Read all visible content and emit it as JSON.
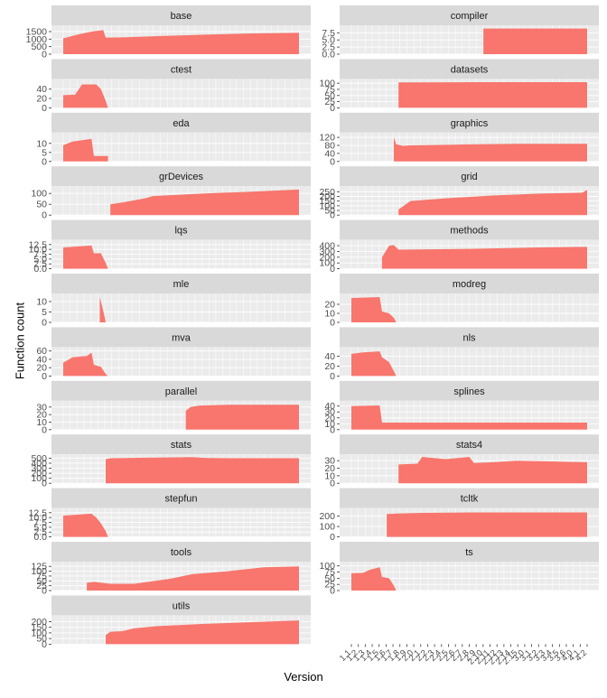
{
  "chart_data": {
    "type": "area",
    "xlabel": "Version",
    "ylabel": "Function count",
    "fill_color": "#F8766D",
    "strip_color": "#D9D9D9",
    "panel_color": "#EBEBEB",
    "grid_color": "#FFFFFF",
    "x_tick_labels_left": [
      "1.1",
      "1.2",
      "1.3",
      "1.4",
      "1.5",
      "1.6",
      "1.7",
      "1.8",
      "1.9",
      "2.0",
      "2.1",
      "2.2",
      "2.3",
      "2.4",
      "2.5",
      "2.6",
      "2.7",
      "2.8",
      "2.9",
      "2.10",
      "2.11",
      "2.12",
      "2.13",
      "2.14",
      "2.15",
      "3.0",
      "3.1",
      "3.2",
      "3.3",
      "3.4",
      "3.5",
      "3.6",
      "4.0",
      "4.1",
      "4.2"
    ],
    "x_tick_labels_right": [
      "1.1",
      "1.2",
      "1.3",
      "1.4",
      "1.5",
      "1.6",
      "1.7",
      "1.8",
      "1.9",
      "2.0",
      "2.1",
      "2.2",
      "2.3",
      "2.4",
      "2.5",
      "2.6",
      "2.7",
      "2.8",
      "2.9",
      "2.10",
      "2.11",
      "2.12",
      "2.13",
      "2.14",
      "2.15",
      "3.0",
      "3.1",
      "3.2",
      "3.3",
      "3.4",
      "3.5",
      "3.6",
      "4.0",
      "4.1",
      "4.2"
    ],
    "x_range": [
      0,
      1
    ],
    "panels": [
      {
        "name": "base",
        "yticks": [
          0,
          500,
          1000,
          1500
        ],
        "ylim": [
          0,
          1800
        ],
        "x": [
          0.0,
          0.06,
          0.12,
          0.17,
          0.18,
          0.25,
          0.4,
          0.6,
          0.8,
          1.0
        ],
        "y": [
          1050,
          1300,
          1500,
          1600,
          1100,
          1120,
          1200,
          1300,
          1380,
          1420
        ]
      },
      {
        "name": "compiler",
        "yticks": [
          0,
          2.5,
          5,
          7.5
        ],
        "yticklabels": [
          "0.0",
          "2.5",
          "5.0",
          "7.5"
        ],
        "ylim": [
          0,
          9.5
        ],
        "x": [
          0.56,
          1.0
        ],
        "y": [
          9,
          9
        ]
      },
      {
        "name": "ctest",
        "yticks": [
          0,
          20,
          40
        ],
        "ylim": [
          0,
          58
        ],
        "x": [
          0.0,
          0.05,
          0.08,
          0.14,
          0.16,
          0.18,
          0.19
        ],
        "y": [
          27,
          28,
          50,
          50,
          40,
          15,
          0
        ]
      },
      {
        "name": "datasets",
        "yticks": [
          0,
          25,
          50,
          75,
          100
        ],
        "ylim": [
          0,
          110
        ],
        "x": [
          0.2,
          0.5,
          1.0
        ],
        "y": [
          103,
          104,
          104
        ]
      },
      {
        "name": "eda",
        "yticks": [
          0,
          5,
          10
        ],
        "ylim": [
          0,
          15
        ],
        "x": [
          0.0,
          0.04,
          0.12,
          0.13,
          0.19
        ],
        "y": [
          9,
          11,
          12.5,
          3,
          3
        ]
      },
      {
        "name": "graphics",
        "yticks": [
          0,
          40,
          80,
          120
        ],
        "ylim": [
          0,
          135
        ],
        "x": [
          0.18,
          0.19,
          0.22,
          0.25,
          0.35,
          0.5,
          0.7,
          1.0
        ],
        "y": [
          120,
          85,
          78,
          80,
          82,
          85,
          88,
          88
        ]
      },
      {
        "name": "grDevices",
        "yticks": [
          0,
          50,
          100
        ],
        "ylim": [
          0,
          125
        ],
        "x": [
          0.2,
          0.25,
          0.35,
          0.38,
          0.6,
          0.8,
          1.0
        ],
        "y": [
          50,
          58,
          78,
          88,
          100,
          108,
          118
        ]
      },
      {
        "name": "grid",
        "yticks": [
          0,
          50,
          100,
          150,
          200,
          250
        ],
        "ylim": [
          0,
          290
        ],
        "x": [
          0.2,
          0.25,
          0.4,
          0.6,
          0.8,
          0.98,
          1.0
        ],
        "y": [
          60,
          150,
          180,
          210,
          230,
          240,
          270
        ]
      },
      {
        "name": "lqs",
        "yticks": [
          0,
          2.5,
          5,
          7.5,
          10,
          12.5
        ],
        "yticklabels": [
          "0.0",
          "2.5",
          "5.0",
          "7.5",
          "10.0",
          "12.5"
        ],
        "ylim": [
          0,
          14
        ],
        "x": [
          0.0,
          0.12,
          0.13,
          0.16,
          0.18,
          0.19
        ],
        "y": [
          11,
          12,
          8,
          8,
          3,
          0
        ]
      },
      {
        "name": "methods",
        "yticks": [
          0,
          100,
          200,
          300,
          400
        ],
        "ylim": [
          0,
          470
        ],
        "x": [
          0.13,
          0.16,
          0.18,
          0.2,
          0.5,
          0.8,
          1.0
        ],
        "y": [
          200,
          400,
          410,
          330,
          345,
          370,
          380
        ]
      },
      {
        "name": "mle",
        "yticks": [
          0,
          5,
          10
        ],
        "ylim": [
          0,
          13
        ],
        "x": [
          0.155,
          0.16,
          0.175,
          0.18
        ],
        "y": [
          12,
          10,
          3,
          0
        ]
      },
      {
        "name": "modreg",
        "yticks": [
          0,
          10,
          20
        ],
        "ylim": [
          0,
          30
        ],
        "x": [
          0.0,
          0.12,
          0.13,
          0.16,
          0.18,
          0.19
        ],
        "y": [
          27,
          28,
          12,
          10,
          5,
          0
        ]
      },
      {
        "name": "mva",
        "yticks": [
          0,
          20,
          40,
          60
        ],
        "ylim": [
          0,
          65
        ],
        "x": [
          0.0,
          0.04,
          0.1,
          0.12,
          0.13,
          0.16,
          0.18,
          0.19
        ],
        "y": [
          32,
          45,
          48,
          56,
          27,
          22,
          5,
          0
        ]
      },
      {
        "name": "nls",
        "yticks": [
          0,
          20,
          40
        ],
        "ylim": [
          0,
          55
        ],
        "x": [
          0.0,
          0.05,
          0.12,
          0.13,
          0.16,
          0.18,
          0.19
        ],
        "y": [
          45,
          48,
          50,
          38,
          28,
          10,
          0
        ]
      },
      {
        "name": "parallel",
        "yticks": [
          0,
          10,
          20,
          30
        ],
        "ylim": [
          0,
          36
        ],
        "x": [
          0.52,
          0.54,
          0.58,
          0.7,
          1.0
        ],
        "y": [
          25,
          30,
          32,
          33,
          33
        ]
      },
      {
        "name": "splines",
        "yticks": [
          0,
          10,
          20,
          30,
          40
        ],
        "ylim": [
          0,
          46
        ],
        "x": [
          0.0,
          0.12,
          0.13,
          0.5,
          1.0
        ],
        "y": [
          40,
          41,
          12,
          12,
          12
        ]
      },
      {
        "name": "stats",
        "yticks": [
          0,
          100,
          200,
          300,
          400,
          500
        ],
        "ylim": [
          0,
          540
        ],
        "x": [
          0.18,
          0.2,
          0.35,
          0.55,
          0.6,
          0.7,
          1.0
        ],
        "y": [
          480,
          500,
          510,
          520,
          505,
          500,
          500
        ]
      },
      {
        "name": "stats4",
        "yticks": [
          0,
          10,
          20,
          30
        ],
        "ylim": [
          0,
          36
        ],
        "x": [
          0.2,
          0.28,
          0.3,
          0.4,
          0.5,
          0.52,
          0.6,
          0.7,
          0.85,
          1.0
        ],
        "y": [
          25,
          26,
          35,
          32,
          35,
          27,
          28,
          30,
          29,
          28
        ]
      },
      {
        "name": "stepfun",
        "yticks": [
          0,
          2.5,
          5,
          7.5,
          10,
          12.5
        ],
        "yticklabels": [
          "0.0",
          "2.5",
          "5.0",
          "7.5",
          "10.0",
          "12.5"
        ],
        "ylim": [
          0,
          14
        ],
        "x": [
          0.0,
          0.12,
          0.14,
          0.16,
          0.18,
          0.19
        ],
        "y": [
          11,
          12,
          10,
          7,
          3,
          0
        ]
      },
      {
        "name": "tcltk",
        "yticks": [
          0,
          100,
          200
        ],
        "ylim": [
          0,
          260
        ],
        "x": [
          0.15,
          0.2,
          0.3,
          0.5,
          1.0
        ],
        "y": [
          220,
          225,
          230,
          235,
          235
        ]
      },
      {
        "name": "tools",
        "yticks": [
          0,
          25,
          50,
          75,
          100,
          125
        ],
        "ylim": [
          0,
          140
        ],
        "x": [
          0.1,
          0.13,
          0.2,
          0.3,
          0.45,
          0.55,
          0.7,
          0.85,
          1.0
        ],
        "y": [
          40,
          45,
          35,
          35,
          60,
          85,
          100,
          120,
          125
        ]
      },
      {
        "name": "ts",
        "yticks": [
          0,
          25,
          50,
          75,
          100
        ],
        "ylim": [
          0,
          110
        ],
        "x": [
          0.0,
          0.05,
          0.08,
          0.12,
          0.13,
          0.16,
          0.18,
          0.19
        ],
        "y": [
          70,
          72,
          85,
          95,
          55,
          50,
          20,
          0
        ]
      },
      {
        "name": "utils",
        "yticks": [
          0,
          50,
          100,
          150,
          200
        ],
        "ylim": [
          0,
          240
        ],
        "x": [
          0.18,
          0.2,
          0.25,
          0.3,
          0.4,
          0.6,
          0.8,
          1.0
        ],
        "y": [
          80,
          110,
          115,
          140,
          160,
          180,
          195,
          210
        ]
      }
    ]
  }
}
